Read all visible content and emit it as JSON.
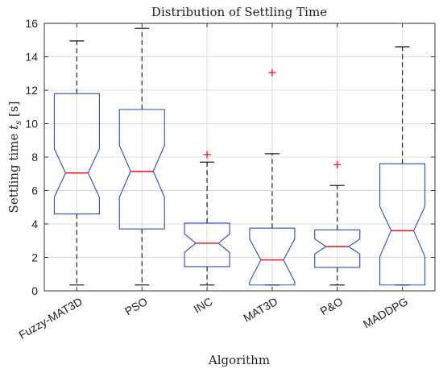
{
  "chart_data": {
    "type": "boxplot",
    "title": "Distribution of Settling Time",
    "xlabel": "Algorithm",
    "ylabel_prefix": "Settling time ",
    "ylabel_symbol": "t",
    "ylabel_subscript": "s",
    "ylabel_suffix": " [s]",
    "ylim": [
      0,
      16
    ],
    "yticks": [
      0,
      2,
      4,
      6,
      8,
      10,
      12,
      14,
      16
    ],
    "grid": true,
    "notched": true,
    "categories": [
      "Fuzzy-MAT3D",
      "PSO",
      "INC",
      "MAT3D",
      "P&O",
      "MADDPG"
    ],
    "boxes": [
      {
        "category": "Fuzzy-MAT3D",
        "whisker_low": 0.35,
        "q1": 4.6,
        "median": 7.05,
        "q3": 11.8,
        "whisker_high": 14.95,
        "notch_low": 5.6,
        "notch_high": 8.5,
        "outliers": []
      },
      {
        "category": "PSO",
        "whisker_low": 0.35,
        "q1": 3.7,
        "median": 7.15,
        "q3": 10.85,
        "whisker_high": 15.7,
        "notch_low": 5.6,
        "notch_high": 8.7,
        "outliers": []
      },
      {
        "category": "INC",
        "whisker_low": 0.35,
        "q1": 1.45,
        "median": 2.85,
        "q3": 4.05,
        "whisker_high": 7.7,
        "notch_low": 2.3,
        "notch_high": 3.4,
        "outliers": [
          8.15
        ]
      },
      {
        "category": "MAT3D",
        "whisker_low": 0.35,
        "q1": 0.35,
        "median": 1.85,
        "q3": 3.75,
        "whisker_high": 8.2,
        "notch_low": 0.55,
        "notch_high": 3.1,
        "outliers": [
          13.05
        ]
      },
      {
        "category": "P&O",
        "whisker_low": 0.35,
        "q1": 1.4,
        "median": 2.65,
        "q3": 3.65,
        "whisker_high": 6.3,
        "notch_low": 2.2,
        "notch_high": 3.1,
        "outliers": [
          7.55
        ]
      },
      {
        "category": "MADDPG",
        "whisker_low": 0.35,
        "q1": 0.35,
        "median": 3.6,
        "q3": 7.6,
        "whisker_high": 14.6,
        "notch_low": 2.05,
        "notch_high": 5.05,
        "outliers": []
      }
    ],
    "colors": {
      "box": "#2b4bc8",
      "median": "#e8202a",
      "outlier": "#ff2020",
      "whisker": "#222222",
      "grid": "#dcdcdc",
      "axis": "#333333"
    }
  }
}
